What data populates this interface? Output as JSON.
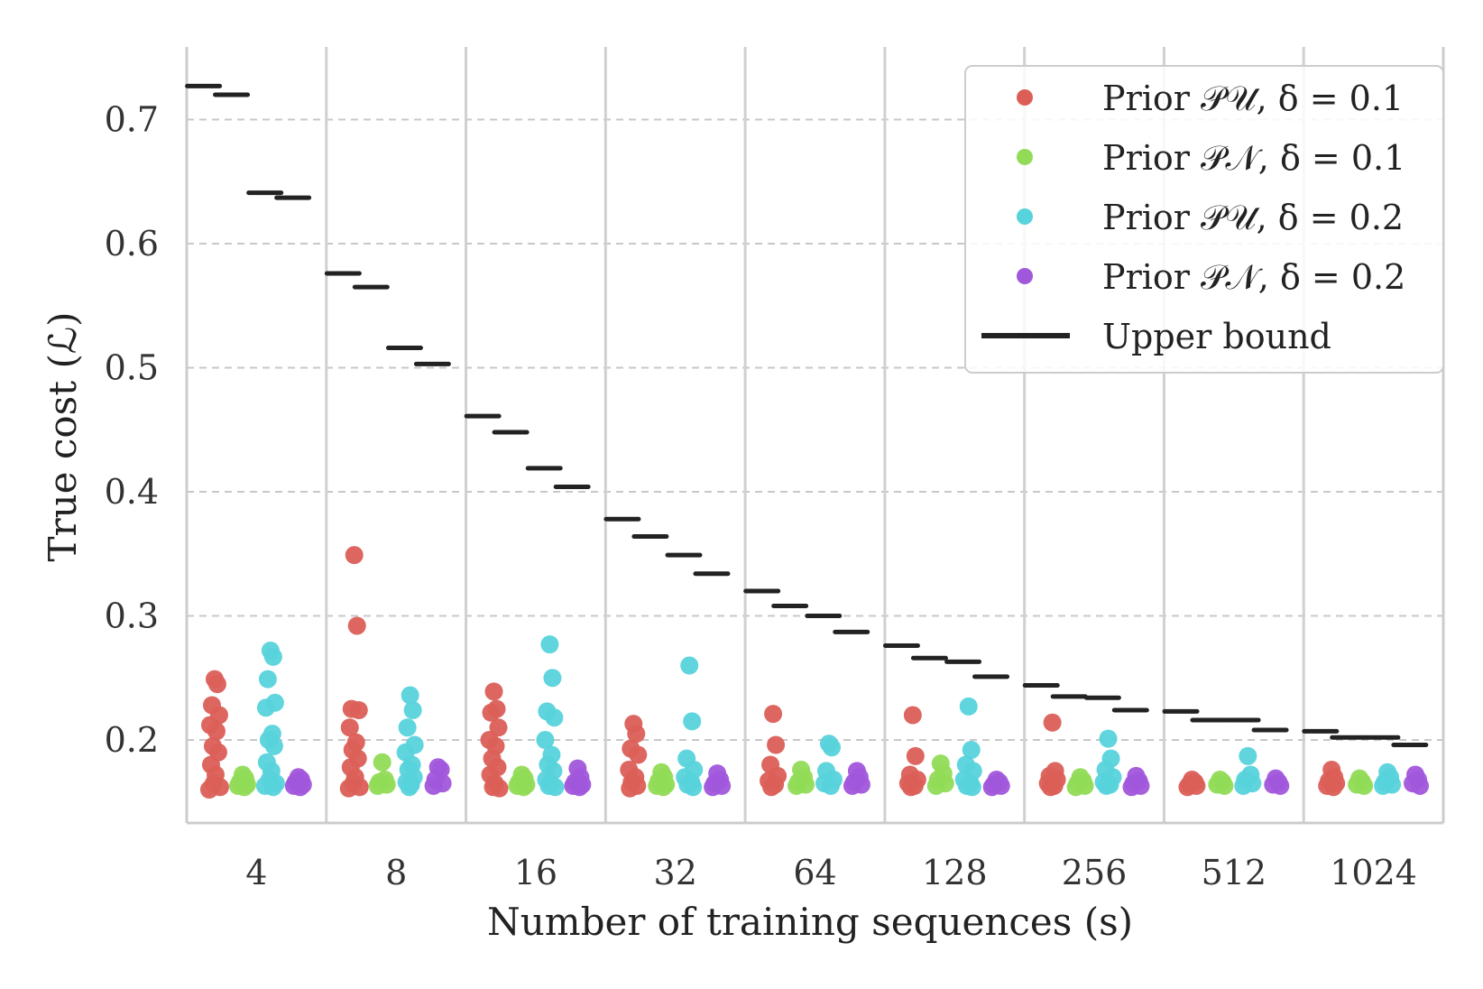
{
  "chart_data": {
    "type": "scatter",
    "title": "",
    "xlabel": "Number of training sequences (s)",
    "ylabel": "True cost (ℒ)",
    "ylim": [
      0.13,
      0.76
    ],
    "yticks": [
      0.2,
      0.3,
      0.4,
      0.5,
      0.6,
      0.7
    ],
    "yticklabels": [
      "0.2",
      "0.3",
      "0.4",
      "0.5",
      "0.6",
      "0.7"
    ],
    "grid": "horizontal-dashed",
    "categories": [
      "4",
      "8",
      "16",
      "32",
      "64",
      "128",
      "256",
      "512",
      "1024"
    ],
    "legend": {
      "placement": "top-right",
      "entries": [
        {
          "label": "Prior 𝒫𝒰, δ = 0.1",
          "color": "#db5f57",
          "marker": "dot"
        },
        {
          "label": "Prior 𝒫𝒩, δ = 0.1",
          "color": "#91db57",
          "marker": "dot"
        },
        {
          "label": "Prior 𝒫𝒰, δ = 0.2",
          "color": "#57d3db",
          "marker": "dot"
        },
        {
          "label": "Prior 𝒫𝒩, δ = 0.2",
          "color": "#a157db",
          "marker": "dot"
        },
        {
          "label": "Upper bound",
          "color": "#222222",
          "marker": "line"
        }
      ]
    },
    "upper_bound": [
      [
        0.727,
        0.72,
        0.641,
        0.637
      ],
      [
        0.576,
        0.565,
        0.516,
        0.503
      ],
      [
        0.461,
        0.448,
        0.419,
        0.404
      ],
      [
        0.378,
        0.364,
        0.349,
        0.334
      ],
      [
        0.32,
        0.308,
        0.3,
        0.287
      ],
      [
        0.276,
        0.266,
        0.263,
        0.251
      ],
      [
        0.244,
        0.235,
        0.234,
        0.224
      ],
      [
        0.223,
        0.216,
        0.216,
        0.208
      ],
      [
        0.207,
        0.202,
        0.202,
        0.196
      ]
    ],
    "series": [
      {
        "name": "Prior 𝒫𝒰, δ = 0.1",
        "color": "#db5f57",
        "values": [
          [
            0.249,
            0.245,
            0.228,
            0.22,
            0.212,
            0.207,
            0.195,
            0.19,
            0.18,
            0.172,
            0.165,
            0.162,
            0.16
          ],
          [
            0.349,
            0.292,
            0.225,
            0.224,
            0.21,
            0.198,
            0.192,
            0.185,
            0.178,
            0.17,
            0.165,
            0.162,
            0.161
          ],
          [
            0.239,
            0.225,
            0.222,
            0.21,
            0.2,
            0.195,
            0.185,
            0.178,
            0.172,
            0.165,
            0.162,
            0.161
          ],
          [
            0.213,
            0.205,
            0.193,
            0.188,
            0.176,
            0.17,
            0.166,
            0.163,
            0.161
          ],
          [
            0.221,
            0.196,
            0.18,
            0.171,
            0.167,
            0.164,
            0.162
          ],
          [
            0.22,
            0.187,
            0.172,
            0.168,
            0.165,
            0.163,
            0.162
          ],
          [
            0.214,
            0.175,
            0.171,
            0.168,
            0.165,
            0.163,
            0.162
          ],
          [
            0.168,
            0.166,
            0.164,
            0.163,
            0.162
          ],
          [
            0.176,
            0.17,
            0.167,
            0.165,
            0.163,
            0.162
          ]
        ]
      },
      {
        "name": "Prior 𝒫𝒩, δ = 0.1",
        "color": "#91db57",
        "values": [
          [
            0.172,
            0.169,
            0.166,
            0.164,
            0.163,
            0.162
          ],
          [
            0.182,
            0.168,
            0.166,
            0.164,
            0.163
          ],
          [
            0.172,
            0.169,
            0.166,
            0.164,
            0.163,
            0.162
          ],
          [
            0.174,
            0.17,
            0.167,
            0.164,
            0.163,
            0.162
          ],
          [
            0.176,
            0.17,
            0.166,
            0.164,
            0.163
          ],
          [
            0.181,
            0.173,
            0.168,
            0.165,
            0.163
          ],
          [
            0.17,
            0.167,
            0.165,
            0.163,
            0.162
          ],
          [
            0.168,
            0.166,
            0.164,
            0.163
          ],
          [
            0.169,
            0.166,
            0.164,
            0.163
          ]
        ]
      },
      {
        "name": "Prior 𝒫𝒰, δ = 0.2",
        "color": "#57d3db",
        "values": [
          [
            0.272,
            0.267,
            0.249,
            0.23,
            0.226,
            0.205,
            0.2,
            0.195,
            0.182,
            0.175,
            0.168,
            0.165,
            0.163,
            0.162
          ],
          [
            0.236,
            0.224,
            0.21,
            0.196,
            0.19,
            0.18,
            0.176,
            0.17,
            0.166,
            0.164,
            0.162
          ],
          [
            0.277,
            0.25,
            0.223,
            0.218,
            0.2,
            0.188,
            0.18,
            0.175,
            0.168,
            0.165,
            0.163,
            0.162
          ],
          [
            0.26,
            0.215,
            0.185,
            0.176,
            0.17,
            0.166,
            0.164,
            0.162
          ],
          [
            0.197,
            0.194,
            0.175,
            0.168,
            0.165,
            0.163
          ],
          [
            0.227,
            0.192,
            0.18,
            0.175,
            0.168,
            0.165,
            0.163,
            0.162
          ],
          [
            0.201,
            0.185,
            0.176,
            0.17,
            0.166,
            0.164,
            0.163
          ],
          [
            0.187,
            0.172,
            0.168,
            0.165,
            0.163
          ],
          [
            0.174,
            0.17,
            0.166,
            0.164,
            0.163
          ]
        ]
      },
      {
        "name": "Prior 𝒫𝒩, δ = 0.2",
        "color": "#a157db",
        "values": [
          [
            0.17,
            0.168,
            0.166,
            0.164,
            0.163,
            0.162
          ],
          [
            0.178,
            0.176,
            0.168,
            0.165,
            0.163
          ],
          [
            0.177,
            0.17,
            0.166,
            0.164,
            0.163,
            0.162
          ],
          [
            0.173,
            0.168,
            0.165,
            0.163,
            0.162
          ],
          [
            0.175,
            0.17,
            0.166,
            0.164,
            0.163
          ],
          [
            0.168,
            0.166,
            0.164,
            0.163,
            0.162
          ],
          [
            0.171,
            0.167,
            0.165,
            0.163,
            0.162
          ],
          [
            0.169,
            0.166,
            0.164,
            0.163
          ],
          [
            0.172,
            0.168,
            0.165,
            0.163
          ]
        ]
      }
    ]
  }
}
